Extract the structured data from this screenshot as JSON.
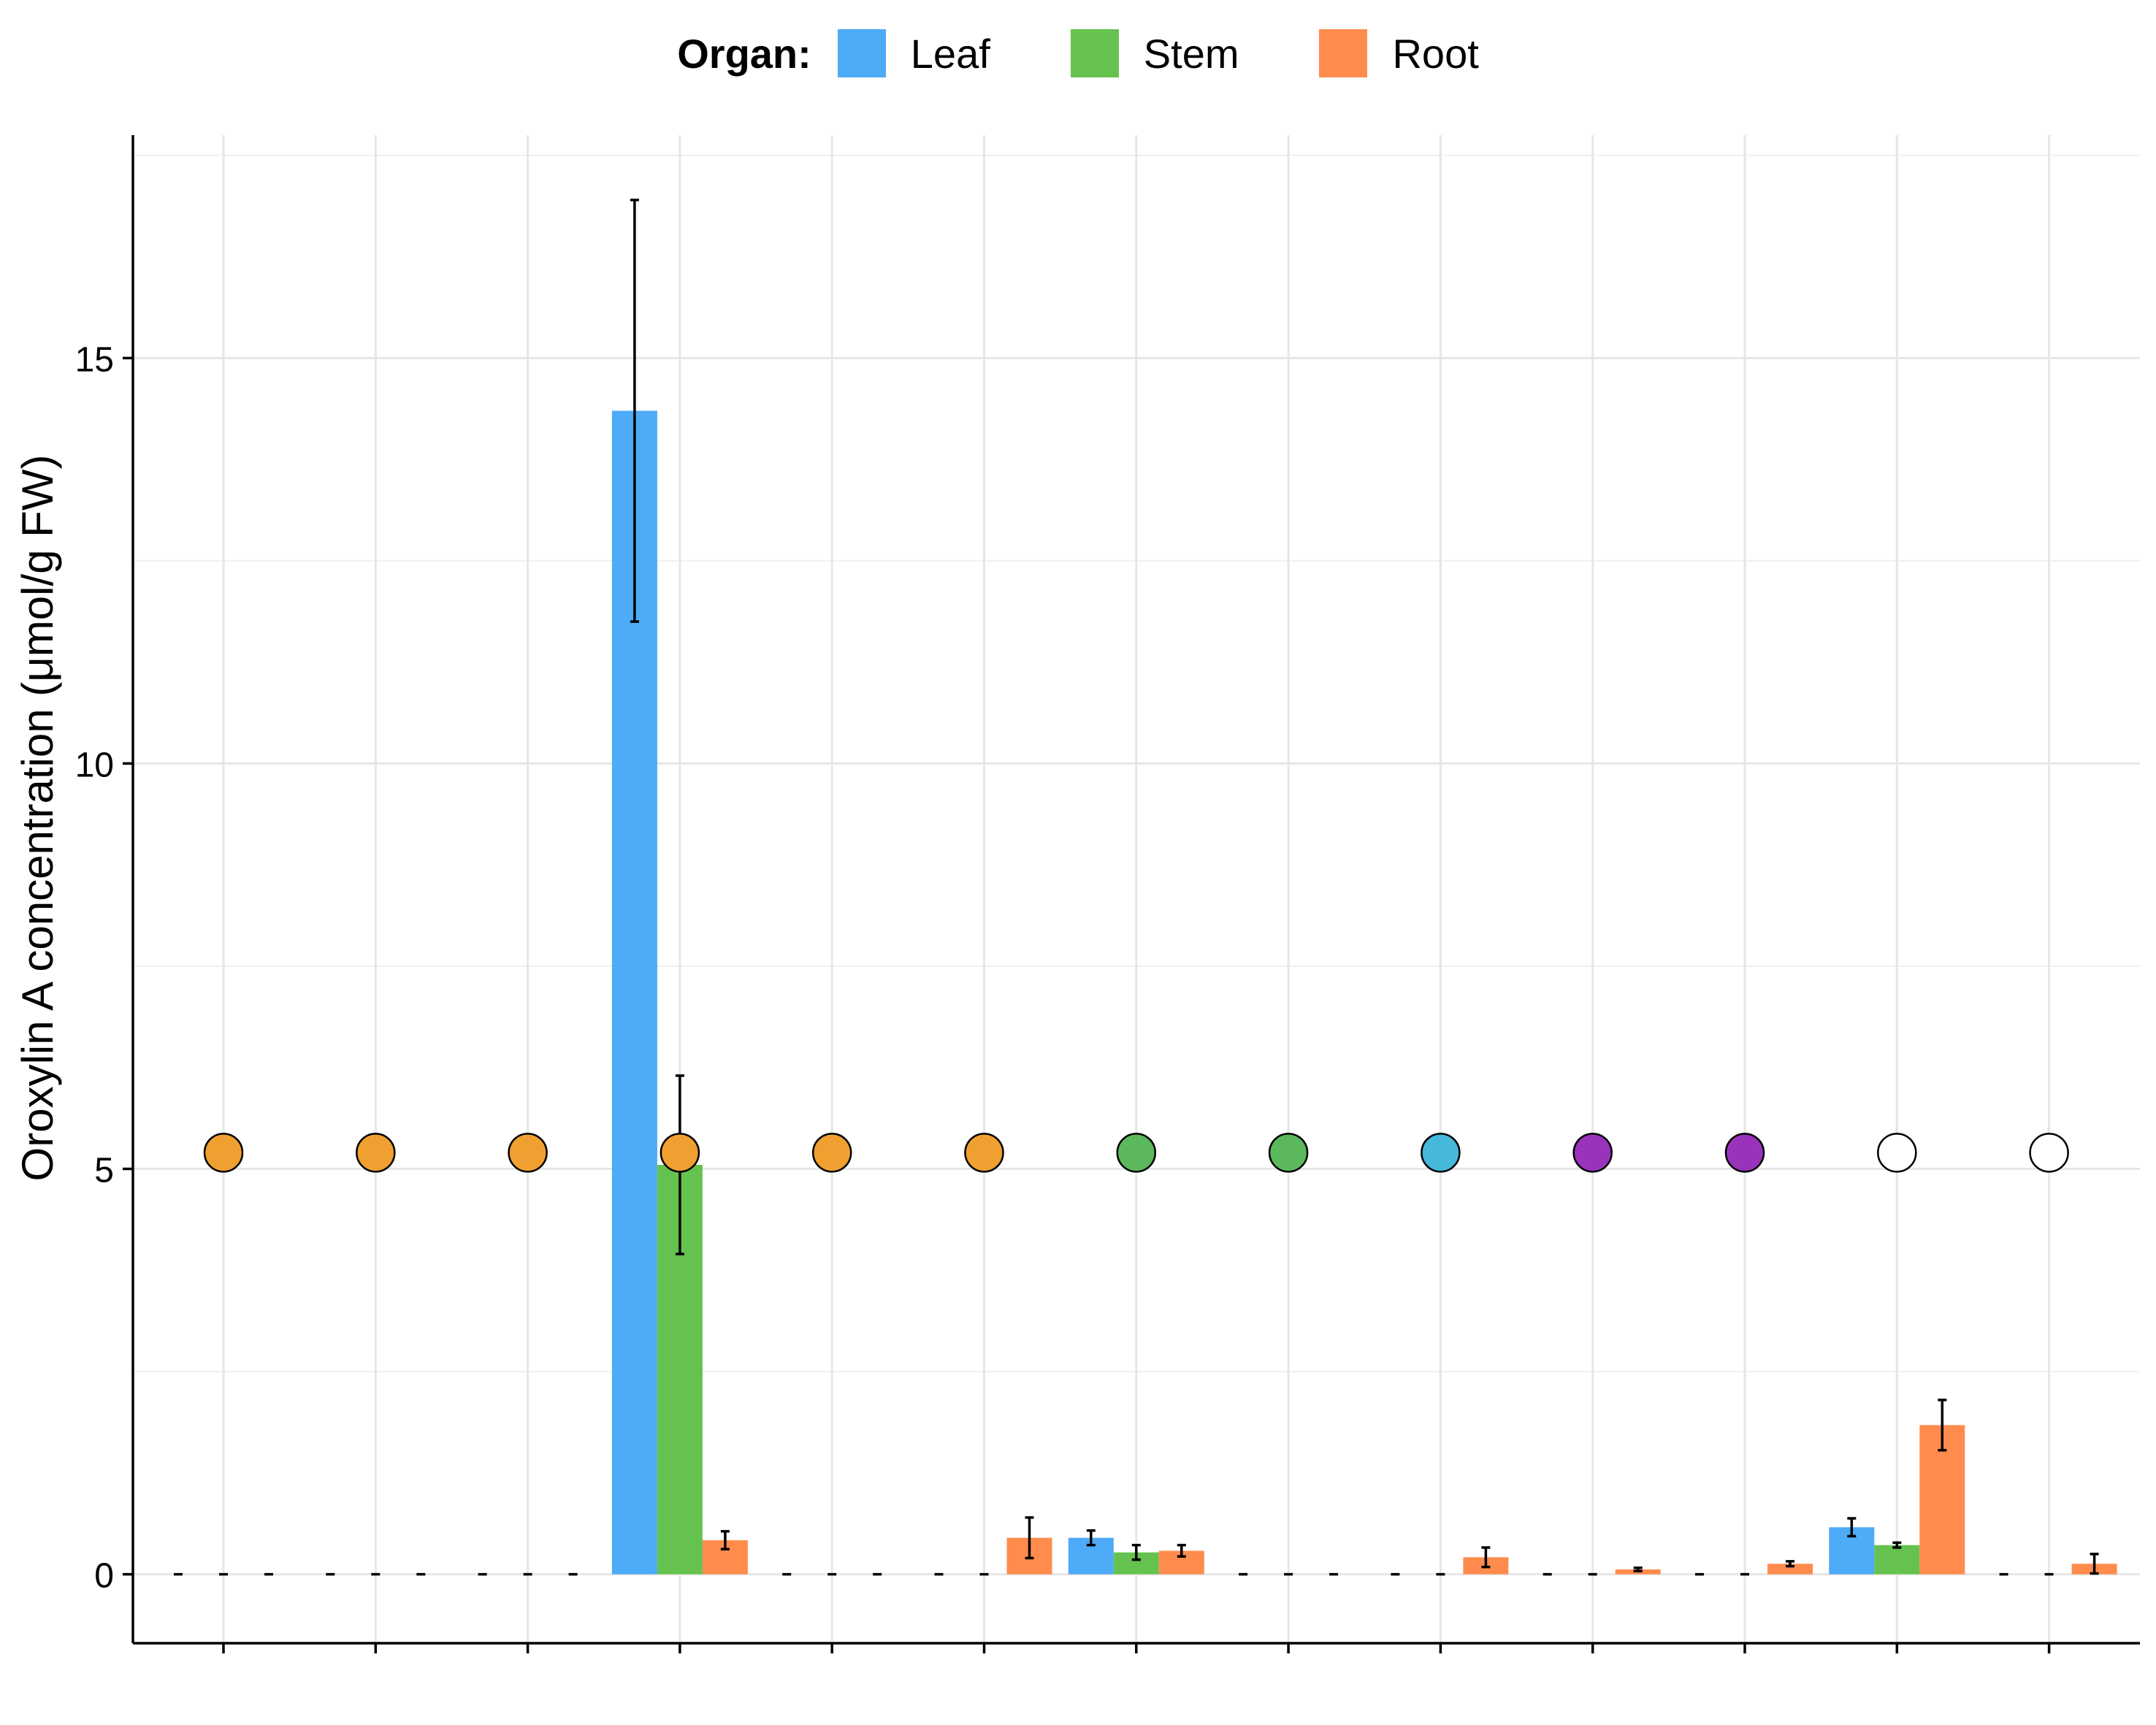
{
  "chart_data": {
    "type": "bar",
    "ylabel": "Oroxylin A concentration (μmol/g FW)",
    "xlabel": "",
    "ylim": [
      -0.85,
      17.75
    ],
    "yticks": [
      0,
      5,
      10,
      15
    ],
    "grid": true,
    "legend": {
      "title": "Organ:",
      "position": "top"
    },
    "series": [
      {
        "name": "Leaf",
        "color": "#4DABF7",
        "values": [
          0,
          0,
          0,
          14.35,
          0,
          0,
          0.45,
          0,
          0,
          0,
          0,
          0.58,
          0
        ],
        "errors": [
          0,
          0,
          0,
          2.6,
          0,
          0,
          0.09,
          0,
          0,
          0,
          0,
          0.11,
          0
        ]
      },
      {
        "name": "Stem",
        "color": "#66C24F",
        "values": [
          0,
          0,
          0,
          5.05,
          0,
          0,
          0.27,
          0,
          0,
          0,
          0,
          0.36,
          0
        ],
        "errors": [
          0,
          0,
          0,
          1.1,
          0,
          0,
          0.09,
          0,
          0,
          0,
          0,
          0.03,
          0
        ]
      },
      {
        "name": "Root",
        "color": "#FF8C4D",
        "values": [
          0,
          0,
          0,
          0.42,
          0,
          0.45,
          0.29,
          0,
          0.21,
          0.06,
          0.13,
          1.84,
          0.13
        ],
        "errors": [
          0,
          0,
          0,
          0.11,
          0,
          0.25,
          0.07,
          0,
          0.12,
          0.02,
          0.03,
          0.31,
          0.12
        ]
      }
    ],
    "markers": {
      "y": 5.2,
      "colors": [
        "#F0A030",
        "#F0A030",
        "#F0A030",
        "#F0A030",
        "#F0A030",
        "#F0A030",
        "#5CB85C",
        "#5CB85C",
        "#46B8DA",
        "#9933BB",
        "#9933BB",
        "#FFFFFF",
        "#FFFFFF"
      ]
    }
  }
}
